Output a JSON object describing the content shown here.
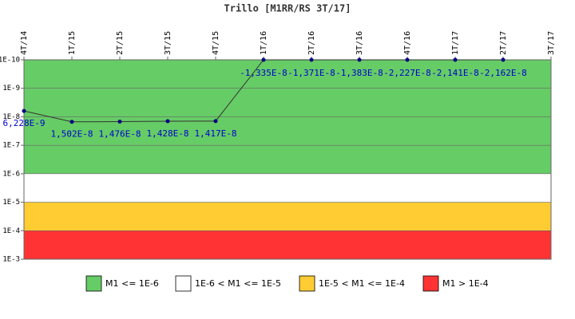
{
  "chart_data": {
    "type": "line",
    "title": "Trillo [M1RR/RS 3T/17]",
    "categories": [
      "4T/14",
      "1T/15",
      "2T/15",
      "3T/15",
      "4T/15",
      "1T/16",
      "2T/16",
      "3T/16",
      "4T/16",
      "1T/17",
      "2T/17",
      "3T/17"
    ],
    "series": [
      {
        "name": "M1",
        "color": "#000080",
        "values": [
          6.228e-09,
          1.502e-08,
          1.476e-08,
          1.428e-08,
          1.417e-08,
          -1.335e-08,
          -1.371e-08,
          -1.383e-08,
          -2.227e-08,
          -2.141e-08,
          -2.162e-08,
          null
        ],
        "value_labels": [
          "6,228E-9",
          "1,502E-8",
          "1,476E-8",
          "1,428E-8",
          "1,417E-8",
          "-1,335E-8",
          "-1,371E-8",
          "-1,383E-8",
          "-2,227E-8",
          "-2,141E-8",
          "-2,162E-8",
          null
        ]
      }
    ],
    "ylim": [
      1e-10,
      0.001
    ],
    "log_y": true,
    "y_inverted": true,
    "yticks": [
      {
        "value": 1e-10,
        "label": "1E-10"
      },
      {
        "value": 1e-09,
        "label": "1E-9"
      },
      {
        "value": 1e-08,
        "label": "1E-8"
      },
      {
        "value": 1e-07,
        "label": "1E-7"
      },
      {
        "value": 1e-06,
        "label": "1E-6"
      },
      {
        "value": 1e-05,
        "label": "1E-5"
      },
      {
        "value": 0.0001,
        "label": "1E-4"
      },
      {
        "value": 0.001,
        "label": "1E-3"
      }
    ],
    "bands": [
      {
        "name": "M1 <= 1E-6",
        "color": "#66cc66",
        "from": 1e-10,
        "to": 1e-06
      },
      {
        "name": "1E-6 < M1 <= 1E-5",
        "color": "#ffffff",
        "from": 1e-06,
        "to": 1e-05
      },
      {
        "name": "1E-5 < M1 <= 1E-4",
        "color": "#ffcc33",
        "from": 1e-05,
        "to": 0.0001
      },
      {
        "name": "M1 > 1E-4",
        "color": "#ff3333",
        "from": 0.0001,
        "to": 0.001
      }
    ]
  }
}
